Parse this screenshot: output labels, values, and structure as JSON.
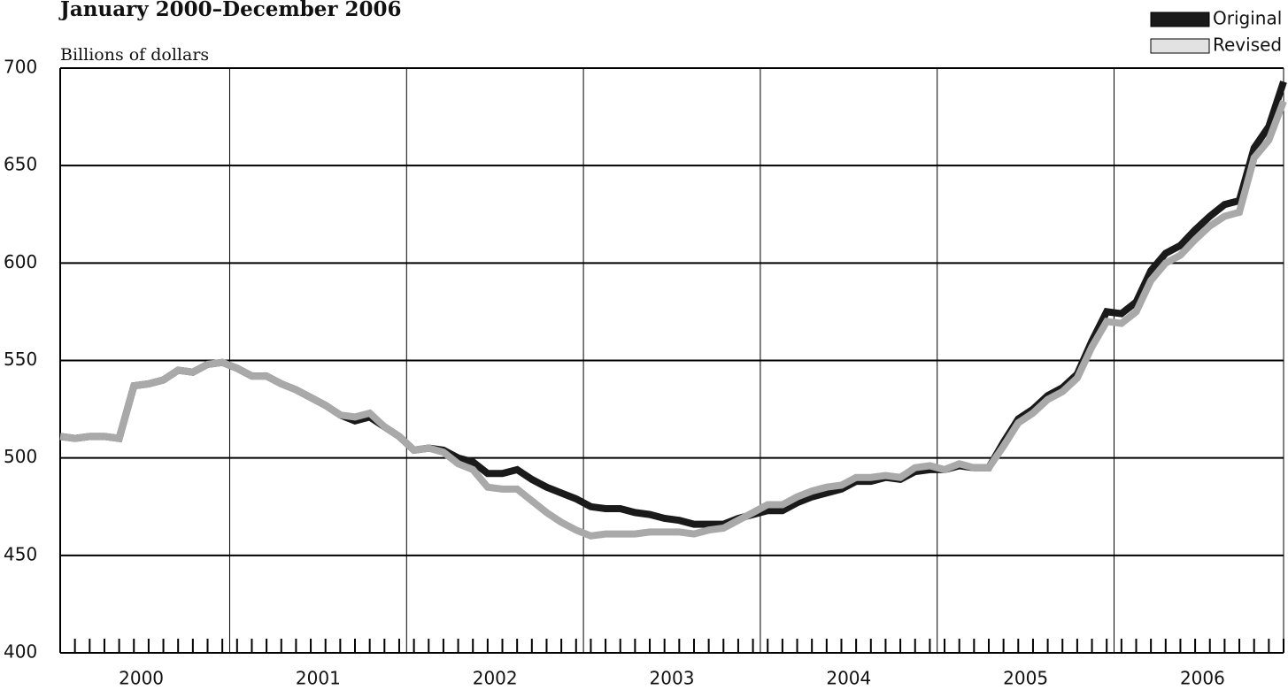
{
  "chart_data": {
    "type": "line",
    "title": "January 2000–December 2006",
    "ylabel": "Billions of dollars",
    "categories": [
      null,
      null,
      null,
      null,
      null,
      null,
      "2000",
      null,
      null,
      null,
      null,
      null,
      null,
      null,
      null,
      null,
      null,
      null,
      "2001",
      null,
      null,
      null,
      null,
      null,
      null,
      null,
      null,
      null,
      null,
      null,
      "2002",
      null,
      null,
      null,
      null,
      null,
      null,
      null,
      null,
      null,
      null,
      null,
      "2003",
      null,
      null,
      null,
      null,
      null,
      null,
      null,
      null,
      null,
      null,
      null,
      "2004",
      null,
      null,
      null,
      null,
      null,
      null,
      null,
      null,
      null,
      null,
      null,
      "2005",
      null,
      null,
      null,
      null,
      null,
      null,
      null,
      null,
      null,
      null,
      null,
      "2006",
      null,
      null,
      null,
      null,
      null
    ],
    "series": [
      {
        "name": "Original",
        "color": "#1a1a1a",
        "values": [
          511,
          510,
          511,
          511,
          510,
          537,
          538,
          540,
          545,
          544,
          548,
          549,
          546,
          542,
          542,
          538,
          535,
          531,
          527,
          522,
          519,
          521,
          516,
          511,
          504,
          505,
          504,
          500,
          498,
          492,
          492,
          494,
          489,
          485,
          482,
          479,
          475,
          474,
          474,
          472,
          471,
          469,
          468,
          466,
          466,
          466,
          469,
          471,
          473,
          473,
          477,
          480,
          482,
          484,
          488,
          488,
          490,
          489,
          493,
          494,
          494,
          496,
          495,
          495,
          508,
          520,
          525,
          532,
          536,
          543,
          560,
          575,
          574,
          580,
          596,
          605,
          609,
          617,
          624,
          630,
          632,
          659,
          670,
          693
        ]
      },
      {
        "name": "Revised",
        "color": "#a9a9a9",
        "values": [
          511,
          510,
          511,
          511,
          510,
          537,
          538,
          540,
          545,
          544,
          548,
          549,
          546,
          542,
          542,
          538,
          535,
          531,
          527,
          522,
          521,
          523,
          516,
          511,
          504,
          505,
          503,
          497,
          494,
          485,
          484,
          484,
          478,
          472,
          467,
          463,
          460,
          461,
          461,
          461,
          462,
          462,
          462,
          461,
          463,
          464,
          468,
          472,
          476,
          476,
          480,
          483,
          485,
          486,
          490,
          490,
          491,
          490,
          495,
          496,
          494,
          497,
          495,
          495,
          506,
          518,
          523,
          530,
          534,
          541,
          557,
          570,
          569,
          575,
          591,
          600,
          604,
          612,
          619,
          624,
          626,
          654,
          663,
          683
        ]
      }
    ],
    "ylim": [
      400,
      700
    ],
    "yticks": [
      400,
      450,
      500,
      550,
      600,
      650,
      700
    ],
    "grid": true,
    "legend": "top-right"
  }
}
